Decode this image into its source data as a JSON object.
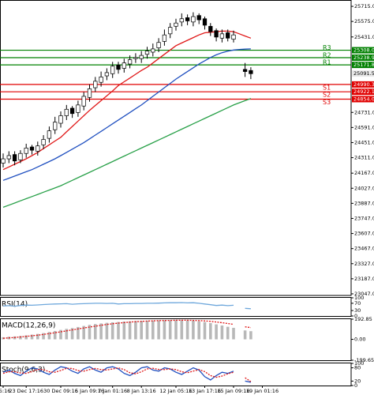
{
  "chart_data": [
    {
      "type": "candlestick",
      "categories": [
        "05:16",
        null,
        null,
        null,
        "23 Dec 17:16",
        null,
        null,
        null,
        null,
        null,
        "30 Dec 09:16",
        null,
        null,
        null,
        null,
        "5 Jan 09:16",
        null,
        null,
        null,
        "7 Jan 01:16",
        null,
        null,
        null,
        null,
        "8 Jan 13:16",
        null,
        null,
        null,
        null,
        null,
        "12 Jan 05:16",
        null,
        null,
        null,
        null,
        "13 Jan 17:16",
        null,
        null,
        null,
        null,
        "15 Jan 09:16",
        null,
        null,
        null,
        null,
        "19 Jan 01:16"
      ],
      "open": [
        24260,
        24300,
        24340,
        24290,
        24350,
        24410,
        24370,
        24430,
        24490,
        24570,
        24630,
        24700,
        24770,
        24730,
        24790,
        24870,
        24960,
        25010,
        25070,
        25090,
        25170,
        25140,
        25180,
        25230,
        25230,
        25270,
        25290,
        25330,
        25390,
        25460,
        25530,
        25570,
        25610,
        25570,
        25630,
        25600,
        25530,
        25490,
        25420,
        25470,
        25410,
        null,
        25130,
        25120,
        null,
        null
      ],
      "high": [
        24350,
        24370,
        24370,
        24380,
        24440,
        24430,
        24460,
        24520,
        24600,
        24690,
        24740,
        24800,
        24790,
        24840,
        24920,
        24990,
        25060,
        25110,
        25140,
        25200,
        25200,
        25230,
        25260,
        25280,
        25300,
        25340,
        25370,
        25420,
        25500,
        25560,
        25600,
        25650,
        25640,
        25660,
        25650,
        25620,
        25560,
        25510,
        25500,
        25500,
        25490,
        null,
        25190,
        25150,
        null,
        null
      ],
      "low": [
        24220,
        24260,
        24240,
        24260,
        24310,
        24340,
        24330,
        24390,
        24450,
        24530,
        24590,
        24660,
        24680,
        24690,
        24750,
        24830,
        24920,
        24970,
        25030,
        25050,
        25090,
        25100,
        25140,
        25190,
        25190,
        25230,
        25250,
        25290,
        25350,
        25420,
        25490,
        25530,
        25540,
        25530,
        25550,
        25500,
        25440,
        25390,
        25380,
        25390,
        25380,
        null,
        25060,
        25040,
        null,
        null
      ],
      "close": [
        24300,
        24330,
        24280,
        24350,
        24400,
        24380,
        24420,
        24480,
        24560,
        24640,
        24700,
        24760,
        24720,
        24800,
        24880,
        24950,
        25020,
        25060,
        25100,
        25160,
        25130,
        25190,
        25220,
        25240,
        25260,
        25300,
        25320,
        25380,
        25450,
        25520,
        25560,
        25600,
        25580,
        25620,
        25590,
        25540,
        25480,
        25430,
        25460,
        25420,
        25450,
        null,
        25110,
        25090,
        null,
        null
      ],
      "series": [
        {
          "color": "#e01818",
          "values": [
            24200,
            24225,
            24250,
            24275,
            24300,
            24330,
            24360,
            24395,
            24430,
            24465,
            24500,
            24550,
            24600,
            24650,
            24700,
            24750,
            24795,
            24840,
            24885,
            24930,
            24980,
            25015,
            25050,
            25085,
            25120,
            25150,
            25190,
            25230,
            25270,
            25310,
            25350,
            25375,
            25400,
            25425,
            25450,
            25470,
            25475,
            25480,
            25485,
            25485,
            25480,
            25460,
            25440,
            25420,
            null,
            null
          ]
        },
        {
          "color": "#2050c0",
          "values": [
            24100,
            24120,
            24140,
            24160,
            24180,
            24200,
            24225,
            24250,
            24275,
            24300,
            24330,
            24360,
            24390,
            24420,
            24450,
            24485,
            24520,
            24555,
            24590,
            24625,
            24660,
            24695,
            24730,
            24765,
            24800,
            24840,
            24880,
            24920,
            24960,
            25000,
            25040,
            25075,
            25110,
            25145,
            25180,
            25210,
            25240,
            25265,
            25285,
            25300,
            25310,
            25315,
            25318,
            25320,
            null,
            null
          ]
        },
        {
          "color": "#28a048",
          "values": [
            23850,
            23870,
            23890,
            23910,
            23930,
            23950,
            23970,
            23990,
            24010,
            24030,
            24050,
            24075,
            24100,
            24125,
            24150,
            24175,
            24200,
            24225,
            24250,
            24275,
            24300,
            24325,
            24350,
            24375,
            24400,
            24425,
            24450,
            24475,
            24500,
            24525,
            24550,
            24575,
            24600,
            24625,
            24650,
            24675,
            24700,
            24725,
            24750,
            24775,
            24800,
            24820,
            24840,
            24860,
            null,
            null
          ]
        }
      ],
      "levels": [
        {
          "name": "R3",
          "value": 25308.0,
          "label": "25308.0",
          "color": "#008000"
        },
        {
          "name": "R2",
          "value": 25238.9,
          "label": "25238.9",
          "color": "#008000"
        },
        {
          "name": "R1",
          "value": 25171.8,
          "label": "25171.8",
          "color": "#008000"
        },
        {
          "name": "S1",
          "value": 24990.3,
          "label": "24990.3",
          "color": "#e00000"
        },
        {
          "name": "S2",
          "value": 24922.1,
          "label": "24922.1",
          "color": "#e00000"
        },
        {
          "name": "S3",
          "value": 24854.0,
          "label": "24854.0",
          "color": "#e00000"
        }
      ],
      "price_label": {
        "value": 25091.5,
        "label": "25091.5"
      },
      "ylim": [
        23032,
        25774
      ],
      "yticks": [
        {
          "value": 25715,
          "label": "25715.0"
        },
        {
          "value": 25575,
          "label": "25575.0"
        },
        {
          "value": 25431,
          "label": "25431.0"
        },
        {
          "value": 24731,
          "label": "24731.0"
        },
        {
          "value": 24591,
          "label": "24591.0"
        },
        {
          "value": 24451,
          "label": "24451.0"
        },
        {
          "value": 24311,
          "label": "24311.0"
        },
        {
          "value": 24167,
          "label": "24167.0"
        },
        {
          "value": 24027,
          "label": "24027.0"
        },
        {
          "value": 23887,
          "label": "23887.0"
        },
        {
          "value": 23747,
          "label": "23747.0"
        },
        {
          "value": 23607,
          "label": "23607.0"
        },
        {
          "value": 23467,
          "label": "23467.0"
        },
        {
          "value": 23327,
          "label": "23327.0"
        },
        {
          "value": 23187,
          "label": "23187.0"
        },
        {
          "value": 23047,
          "label": "23047.0"
        }
      ],
      "up_color": "#ffffff",
      "down_color": "#000000"
    },
    {
      "type": "line",
      "title": "RSI(14)",
      "ylim": [
        0,
        100
      ],
      "yticks": [
        100,
        70,
        30,
        0
      ],
      "series": [
        {
          "color": "#6fa8dc",
          "values": [
            55,
            57,
            54,
            58,
            60,
            59,
            61,
            63,
            65,
            66,
            67,
            68,
            65,
            67,
            68,
            69,
            70,
            70,
            69,
            70,
            66,
            68,
            68,
            69,
            69,
            70,
            70,
            71,
            72,
            73,
            73,
            74,
            72,
            73,
            70,
            66,
            62,
            58,
            60,
            57,
            59,
            null,
            42,
            40,
            null,
            null
          ]
        }
      ]
    },
    {
      "type": "macd",
      "title": "MACD(12,26,9)",
      "ylim": [
        -199.65,
        192.85
      ],
      "yticks": [
        192.85,
        {
          "value": 0,
          "label": "0.00"
        },
        -199.65
      ],
      "series": [
        {
          "color": "#b8b8b8",
          "style": "bar",
          "values": [
            20,
            25,
            28,
            32,
            38,
            45,
            52,
            60,
            70,
            80,
            90,
            100,
            108,
            118,
            128,
            138,
            146,
            152,
            158,
            163,
            166,
            170,
            172,
            175,
            176,
            178,
            180,
            181,
            182,
            182,
            183,
            182,
            180,
            178,
            172,
            165,
            155,
            143,
            132,
            120,
            110,
            null,
            85,
            78,
            null,
            null
          ]
        },
        {
          "color": "#e01818",
          "style": "dotted",
          "values": [
            10,
            14,
            18,
            23,
            28,
            34,
            40,
            47,
            55,
            63,
            72,
            81,
            90,
            99,
            108,
            117,
            126,
            134,
            142,
            149,
            155,
            160,
            165,
            169,
            172,
            175,
            177,
            179,
            180,
            181,
            182,
            182,
            182,
            181,
            179,
            176,
            172,
            166,
            159,
            151,
            143,
            null,
            120,
            112,
            null,
            null
          ]
        }
      ]
    },
    {
      "type": "line",
      "title": "Stoch(9,6,3)",
      "ylim": [
        0,
        100
      ],
      "yticks": [
        100,
        80,
        20,
        0
      ],
      "series": [
        {
          "color": "#2050c0",
          "values": [
            60,
            70,
            55,
            45,
            65,
            80,
            75,
            60,
            50,
            70,
            85,
            80,
            65,
            55,
            75,
            85,
            70,
            60,
            80,
            85,
            75,
            55,
            45,
            60,
            80,
            85,
            70,
            65,
            80,
            75,
            60,
            50,
            65,
            80,
            70,
            40,
            25,
            45,
            60,
            55,
            65,
            null,
            20,
            15,
            null,
            null
          ]
        },
        {
          "color": "#e01818",
          "style": "dotted",
          "values": [
            55,
            62,
            62,
            57,
            55,
            63,
            73,
            72,
            62,
            60,
            68,
            78,
            77,
            67,
            65,
            72,
            77,
            72,
            70,
            75,
            80,
            72,
            58,
            53,
            62,
            75,
            78,
            73,
            72,
            75,
            72,
            62,
            58,
            65,
            72,
            63,
            45,
            37,
            43,
            53,
            60,
            null,
            35,
            18,
            null,
            null
          ]
        }
      ]
    }
  ]
}
